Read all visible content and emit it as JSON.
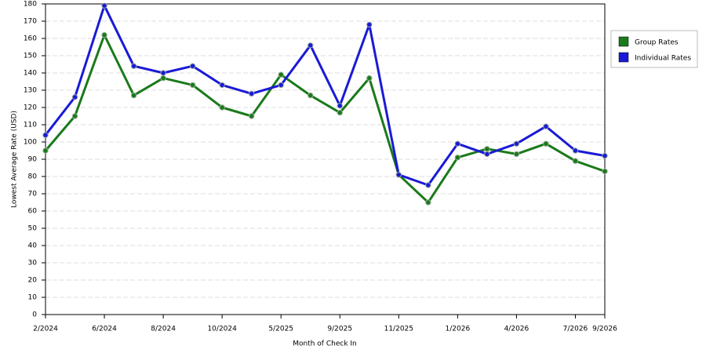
{
  "chart_data": {
    "type": "line",
    "x_label": "Month of Check In",
    "y_label": "Lowest Average Rate (USD)",
    "categories": [
      "2/2024",
      null,
      "6/2024",
      null,
      "8/2024",
      null,
      "10/2024",
      null,
      "5/2025",
      null,
      "9/2025",
      null,
      "11/2025",
      null,
      "1/2026",
      null,
      "4/2026",
      null,
      "7/2026",
      "9/2026"
    ],
    "series": [
      {
        "name": "Group Rates",
        "color": "#1a7a1a",
        "values": [
          95,
          115,
          162,
          127,
          137,
          133,
          120,
          115,
          139,
          127,
          117,
          137,
          81,
          65,
          91,
          96,
          93,
          99,
          89,
          83
        ]
      },
      {
        "name": "Individual Rates",
        "color": "#1a1ad6",
        "values": [
          104,
          126,
          179,
          144,
          140,
          144,
          133,
          128,
          133,
          156,
          121,
          168,
          81,
          75,
          99,
          93,
          99,
          109,
          95,
          92
        ]
      }
    ],
    "ylim": [
      0,
      180
    ],
    "yticks": [
      0,
      10,
      20,
      30,
      40,
      50,
      60,
      70,
      80,
      90,
      100,
      110,
      120,
      130,
      140,
      150,
      160,
      170,
      180
    ],
    "grid": true,
    "legend": "right"
  }
}
